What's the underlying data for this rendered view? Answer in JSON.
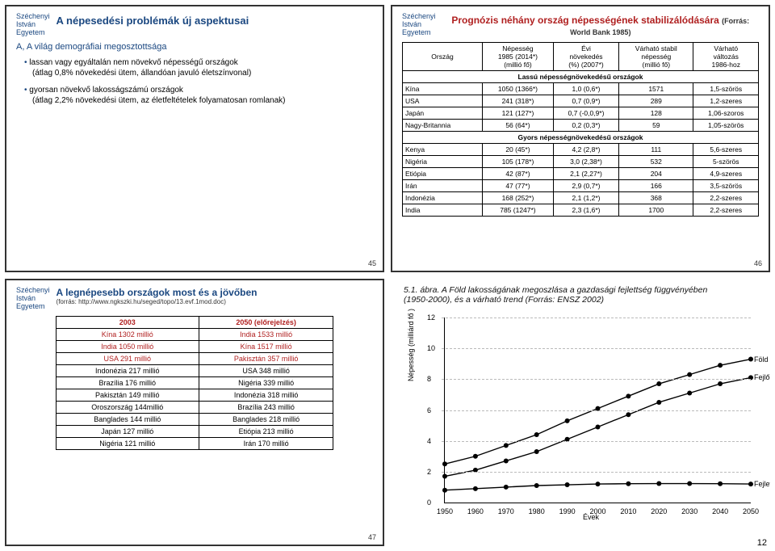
{
  "university": {
    "l1": "Széchenyi",
    "l2": "István",
    "l3": "Egyetem"
  },
  "panel1": {
    "title": "A népesedési problémák új aspektusai",
    "section": "A, A világ demográfiai megosztottsága",
    "b1": "lassan vagy egyáltalán nem növekvő népességű országok",
    "b1s": "(átlag 0,8% növekedési ütem, állandóan javuló életszínvonal)",
    "b2": "gyorsan növekvő lakosságszámú országok",
    "b2s": "(átlag 2,2% növekedési ütem, az életfeltételek folyamatosan romlanak)",
    "page": "45"
  },
  "panel2": {
    "title": "Prognózis néhány ország népességének stabilizálódására",
    "title_src": "(Forrás: World Bank 1985)",
    "h1": "Ország",
    "h2a": "Népesség",
    "h2b": "1985 (2014*)",
    "h2c": "(millió fő)",
    "h3a": "Évi",
    "h3b": "növekedés",
    "h3c": "(%) (2007*)",
    "h4a": "Várható stabil",
    "h4b": "népesség",
    "h4c": "(millió fő)",
    "h5a": "Várható",
    "h5b": "változás",
    "h5c": "1986-hoz",
    "group1": "Lassú népességnövekedésű országok",
    "group2": "Gyors népességnövekedésű országok",
    "rows1": [
      [
        "Kína",
        "1050 (1366*)",
        "1,0 (0,6*)",
        "1571",
        "1,5-szörös"
      ],
      [
        "USA",
        "241 (318*)",
        "0,7 (0,9*)",
        "289",
        "1,2-szeres"
      ],
      [
        "Japán",
        "121 (127*)",
        "0,7 (-0,0,9*)",
        "128",
        "1,06-szoros"
      ],
      [
        "Nagy-Britannia",
        "56 (64*)",
        "0,2 (0,3*)",
        "59",
        "1,05-szörös"
      ]
    ],
    "rows2": [
      [
        "Kenya",
        "20 (45*)",
        "4,2 (2,8*)",
        "111",
        "5,6-szeres"
      ],
      [
        "Nigéria",
        "105 (178*)",
        "3,0 (2,38*)",
        "532",
        "5-szörös"
      ],
      [
        "Etiópia",
        "42 (87*)",
        "2,1 (2,27*)",
        "204",
        "4,9-szeres"
      ],
      [
        "Irán",
        "47 (77*)",
        "2,9 (0,7*)",
        "166",
        "3,5-szörös"
      ],
      [
        "Indonézia",
        "168 (252*)",
        "2,1 (1,2*)",
        "368",
        "2,2-szeres"
      ],
      [
        "India",
        "785 (1247*)",
        "2,3 (1,6*)",
        "1700",
        "2,2-szeres"
      ]
    ],
    "page": "46"
  },
  "panel3": {
    "title": "A legnépesebb országok most és a jövőben",
    "src": "(forrás: http://www.ngkszki.hu/seged/topo/13.evf.1mod.doc)",
    "h1": "2003",
    "h2": "2050 (előrejelzés)",
    "rows": [
      [
        "Kína 1302 millió",
        "India 1533 millió"
      ],
      [
        "India 1050 millió",
        "Kína 1517 millió"
      ],
      [
        "USA 291 millió",
        "Pakisztán 357 millió"
      ],
      [
        "Indonézia 217 millió",
        "USA 348 millió"
      ],
      [
        "Brazília 176 millió",
        "Nigéria 339 millió"
      ],
      [
        "Pakisztán 149 millió",
        "Indonézia 318 millió"
      ],
      [
        "Oroszország 144millió",
        "Brazília 243 millió"
      ],
      [
        "Banglades 144 millió",
        "Banglades 218 millió"
      ],
      [
        "Japán 127 millió",
        "Etiópia 213 millió"
      ],
      [
        "Nigéria 121 millió",
        "Irán 170 millió"
      ]
    ],
    "page": "47"
  },
  "panel4": {
    "caption1": "5.1. ábra. A Föld lakosságának megoszlása a gazdasági fejlettség függvényében",
    "caption2": "(1950-2000), és a várható trend (Forrás: ENSZ 2002)",
    "type": "line",
    "ylabel": "Népesség (milliárd fő )",
    "xlabel": "Évek",
    "ylim": [
      0,
      12
    ],
    "ytick_step": 2,
    "xlim": [
      1950,
      2050
    ],
    "xtick_step": 10,
    "grid_color": "#bbbbbb",
    "series": [
      {
        "name": "Föld",
        "label": "Föld",
        "color": "#000000",
        "values": [
          [
            1950,
            2.5
          ],
          [
            1960,
            3.0
          ],
          [
            1970,
            3.7
          ],
          [
            1980,
            4.4
          ],
          [
            1990,
            5.3
          ],
          [
            2000,
            6.1
          ],
          [
            2010,
            6.9
          ],
          [
            2020,
            7.7
          ],
          [
            2030,
            8.3
          ],
          [
            2040,
            8.9
          ],
          [
            2050,
            9.3
          ]
        ]
      },
      {
        "name": "Fejlődő országok",
        "label": "Fejlődő országok",
        "color": "#000000",
        "values": [
          [
            1950,
            1.7
          ],
          [
            1960,
            2.1
          ],
          [
            1970,
            2.7
          ],
          [
            1980,
            3.3
          ],
          [
            1990,
            4.1
          ],
          [
            2000,
            4.9
          ],
          [
            2010,
            5.7
          ],
          [
            2020,
            6.5
          ],
          [
            2030,
            7.1
          ],
          [
            2040,
            7.7
          ],
          [
            2050,
            8.1
          ]
        ]
      },
      {
        "name": "Fejlett országok",
        "label": "Fejlett országok",
        "color": "#000000",
        "values": [
          [
            1950,
            0.8
          ],
          [
            1960,
            0.9
          ],
          [
            1970,
            1.0
          ],
          [
            1980,
            1.1
          ],
          [
            1990,
            1.15
          ],
          [
            2000,
            1.2
          ],
          [
            2010,
            1.22
          ],
          [
            2020,
            1.23
          ],
          [
            2030,
            1.23
          ],
          [
            2040,
            1.22
          ],
          [
            2050,
            1.2
          ]
        ]
      }
    ],
    "marker": "circle",
    "marker_size": 3,
    "line_width": 1.4
  },
  "doc_page": "12"
}
